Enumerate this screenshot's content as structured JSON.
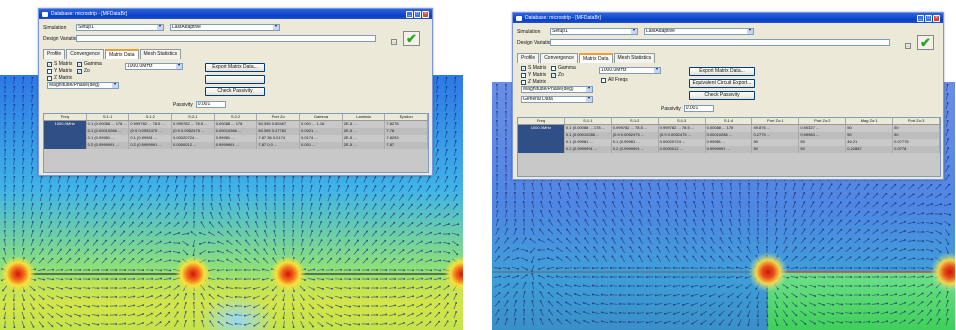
{
  "left_window": {
    "title": "Database: microstrip - [MFDataBr]",
    "simulation_label": "Simulation",
    "simulation_value": "Setup1",
    "sweep_value": "LastAdaptive",
    "design_variation_label": "Design Variation",
    "tabs": [
      {
        "label": "Profile"
      },
      {
        "label": "Convergence"
      },
      {
        "label": "Matrix Data"
      },
      {
        "label": "Mesh Statistics"
      }
    ],
    "active_tab": "Matrix Data",
    "options": [
      {
        "label": "S Matrix",
        "checked": true
      },
      {
        "label": "Y Matrix",
        "checked": false
      },
      {
        "label": "Z Matrix",
        "checked": false
      }
    ],
    "options2": [
      {
        "label": "Gamma",
        "checked": true
      },
      {
        "label": "Zo",
        "checked": true
      }
    ],
    "magnitude_select": "Magnitude/Phase(deg)",
    "frequency_select": "1000.0MHz",
    "buttons": {
      "export": "Export Matrix Data...",
      "blank": "",
      "passivity": "Check Passivity"
    },
    "passivity_label": "Passivity",
    "passivity_value": "0.001",
    "table": {
      "headers": [
        "Freq",
        "S:1:1",
        "S:1:2",
        "S:2:1",
        "S:2:2",
        "Port Zo",
        "Gamma",
        "Lambda",
        "Epsilon"
      ],
      "rows": [
        [
          "1000.0MHz",
          "0.1 (0.00088 ... 178 ...",
          "0.999782 ... 78.5 ...",
          "0.999782 ... 78.5 ...",
          "0.00088 ... 178",
          "50.395 0.50467",
          "0.001 ... 1.16",
          "2E-5 ...",
          "7.8278"
        ],
        [
          "",
          "0.1 (0.00010286 ...",
          "(0.9 0.0052475 ...",
          "(0.9 0.0052475 ...",
          "0.00010286 ...",
          "50.395 0.47782",
          "0.0021 ...",
          "2E-5 ...",
          "7.78"
        ],
        [
          "",
          "0.1 (0.99981 ...",
          "0.1 (0.99981 ...",
          "0.00020724 ...",
          "0.99981 ...",
          "7.87 36 0.0174",
          "0.0174 ...",
          "2E-5 ...",
          "7.8293"
        ],
        [
          "",
          "0.2 (0.9999991 ...",
          "0.2 (0.9999991 ...",
          "0.0000012 ...",
          "0.9999991 ...",
          "7.87 0.0 ...",
          "0.001 ...",
          "2E-5 ...",
          "7.87"
        ]
      ]
    }
  },
  "right_window": {
    "title": "Database: microstrip - [MFDataBr]",
    "simulation_label": "Simulation",
    "simulation_value": "Setup1",
    "sweep_value": "LastAdaptive",
    "design_variation_label": "Design Variation",
    "tabs": [
      {
        "label": "Profile"
      },
      {
        "label": "Convergence"
      },
      {
        "label": "Matrix Data"
      },
      {
        "label": "Mesh Statistics"
      }
    ],
    "active_tab": "Matrix Data",
    "options": [
      {
        "label": "S Matrix",
        "checked": true
      },
      {
        "label": "Y Matrix",
        "checked": false
      },
      {
        "label": "Z Matrix",
        "checked": false
      }
    ],
    "options2": [
      {
        "label": "Gamma",
        "checked": false
      },
      {
        "label": "Zo",
        "checked": true
      }
    ],
    "extra_option": {
      "label": "All Freqs",
      "checked": false
    },
    "magnitude_select": "Magnitude/Phase(deg)",
    "general_select": "General Data",
    "frequency_select": "1000.0MHz",
    "buttons": {
      "export": "Export Matrix Data...",
      "equivalent": "Equivalent Circuit Export...",
      "passivity": "Check Passivity"
    },
    "passivity_label": "Passivity",
    "passivity_value": "0.001",
    "table": {
      "headers": [
        "Freq",
        "S:1:1",
        "S:1:2",
        "S:1:3",
        "S:1:4",
        "Port Zo:1",
        "Port Zo:2",
        "Mag Zo:1",
        "Port Zo:3"
      ],
      "rows": [
        [
          "1000.0MHz",
          "0.1 (0.00088 ... 178 ...",
          "0.999782 ... 78.5 ...",
          "0.999782 ... 78.5 ...",
          "0.00088 ... 178",
          "49.876 ...",
          "0.90327 ...",
          "50",
          "50"
        ],
        [
          "",
          "0.1 (0.00010286 ...",
          "(0.9 0.0052475 ...",
          "(0.9 0.0052475 ...",
          "0.00010286 ...",
          "0.2775 ...",
          "0.99983 ...",
          "50",
          "50"
        ],
        [
          "",
          "0.1 (0.99981 ...",
          "0.1 (0.99981 ...",
          "0.00020724 ...",
          "0.99981 ...",
          "50",
          "50",
          "46.21",
          "0.07775"
        ],
        [
          "",
          "0.2 (0.9999991 ...",
          "0.2 (0.9999991 ...",
          "0.0000012 ...",
          "0.9999991 ...",
          "50",
          "50",
          "0.22887",
          "0.0778"
        ]
      ]
    }
  },
  "window_buttons": {
    "minimize": "_",
    "maximize": "□",
    "close": "×"
  },
  "browse_glyph": "...",
  "check_glyph": "✔",
  "icons": {
    "window": "window-icon",
    "apply": "green-checkmark-icon"
  },
  "colors": {
    "titlebar": "#0a3fc4",
    "field_low": "#2f7de8",
    "field_mid": "#39c6b8",
    "field_high": "#e8e43a",
    "port_glow": "#d81a10",
    "table_row_header": "#2f4f86"
  }
}
